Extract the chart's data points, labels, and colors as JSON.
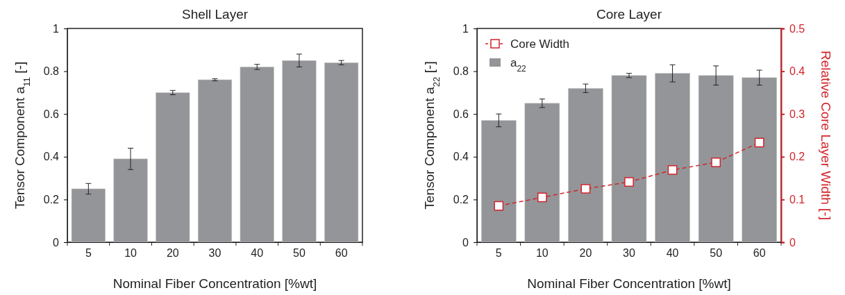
{
  "chart_data": [
    {
      "type": "bar",
      "title": "Shell Layer",
      "xlabel": "Nominal Fiber Concentration [%wt]",
      "ylabel": "Tensor Component a$_{11}$ [-]",
      "categories": [
        "5",
        "10",
        "20",
        "30",
        "40",
        "50",
        "60"
      ],
      "series": [
        {
          "color": "#939598",
          "values": [
            0.25,
            0.39,
            0.7,
            0.76,
            0.82,
            0.85,
            0.84
          ],
          "errors": [
            0.025,
            0.05,
            0.01,
            0.005,
            0.012,
            0.03,
            0.01
          ]
        }
      ],
      "ylim": [
        0,
        1
      ],
      "yticks": [
        0,
        0.2,
        0.4,
        0.6,
        0.8,
        1
      ],
      "grid": false,
      "legend": false
    },
    {
      "type": "bar",
      "title": "Core Layer",
      "xlabel": "Nominal Fiber Concentration [%wt]",
      "ylabel": "Tensor Component a$_{22}$ [-]",
      "y2label": "Relative Core Layer Width [-]",
      "categories": [
        "5",
        "10",
        "20",
        "30",
        "40",
        "50",
        "60"
      ],
      "series": [
        {
          "name": "Core Width",
          "type": "line",
          "axis": "y2",
          "color": "#d2232a",
          "marker": "square",
          "line_style": "dashed",
          "values": [
            0.085,
            0.105,
            0.125,
            0.141,
            0.169,
            0.187,
            0.233
          ]
        },
        {
          "name": "a$_{22}$",
          "color": "#939598",
          "values": [
            0.57,
            0.65,
            0.72,
            0.78,
            0.79,
            0.78,
            0.77
          ],
          "errors": [
            0.03,
            0.02,
            0.02,
            0.01,
            0.04,
            0.045,
            0.035
          ]
        }
      ],
      "ylim": [
        0,
        1
      ],
      "yticks": [
        0,
        0.2,
        0.4,
        0.6,
        0.8,
        1
      ],
      "y2lim": [
        0,
        0.5
      ],
      "y2ticks": [
        0,
        0.1,
        0.2,
        0.3,
        0.4,
        0.5
      ],
      "grid": false,
      "legend": "top left"
    }
  ]
}
